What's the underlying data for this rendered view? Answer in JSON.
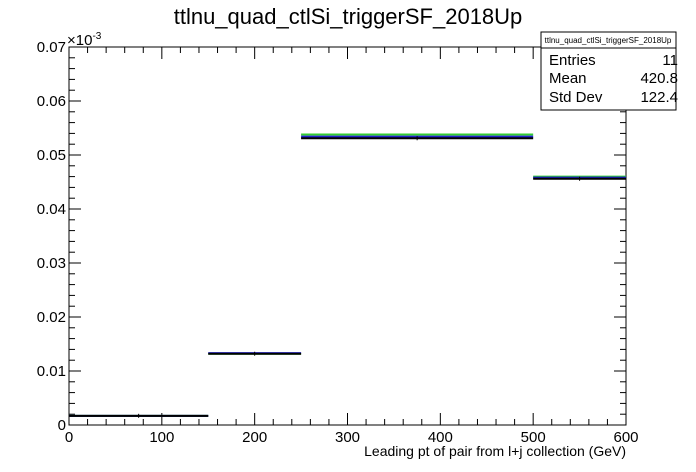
{
  "chart_data": {
    "type": "histogram",
    "title": "ttlnu_quad_ctlSi_triggerSF_2018Up",
    "xlabel": "Leading pt of pair from l+j collection (GeV)",
    "ylabel": "",
    "y_multiplier_label": "×10",
    "y_multiplier_exponent": "-3",
    "xlim": [
      0,
      600
    ],
    "ylim": [
      0,
      0.07
    ],
    "x_ticks": [
      0,
      100,
      200,
      300,
      400,
      500,
      600
    ],
    "x_tick_labels": [
      "0",
      "100",
      "200",
      "300",
      "400",
      "500",
      "600"
    ],
    "y_ticks": [
      0,
      0.01,
      0.02,
      0.03,
      0.04,
      0.05,
      0.06,
      0.07
    ],
    "y_tick_labels": [
      "0",
      "0.01",
      "0.02",
      "0.03",
      "0.04",
      "0.05",
      "0.06",
      "0.07"
    ],
    "bin_edges": [
      0,
      150,
      250,
      500,
      600
    ],
    "series": [
      {
        "values": [
          0.0017,
          0.0132,
          0.0538,
          0.046
        ],
        "color": "#33cc33"
      },
      {
        "values": [
          0.0017,
          0.0133,
          0.0534,
          0.0458
        ],
        "color": "#1f1fcc"
      },
      {
        "values": [
          0.0017,
          0.0132,
          0.0531,
          0.0456
        ],
        "color": "#000000"
      }
    ],
    "stats_box": {
      "title": "ttlnu_quad_ctlSi_triggerSF_2018Up",
      "rows": [
        {
          "label": "Entries",
          "value": "11"
        },
        {
          "label": "Mean",
          "value": "420.8"
        },
        {
          "label": "Std Dev",
          "value": "122.4"
        }
      ]
    }
  }
}
